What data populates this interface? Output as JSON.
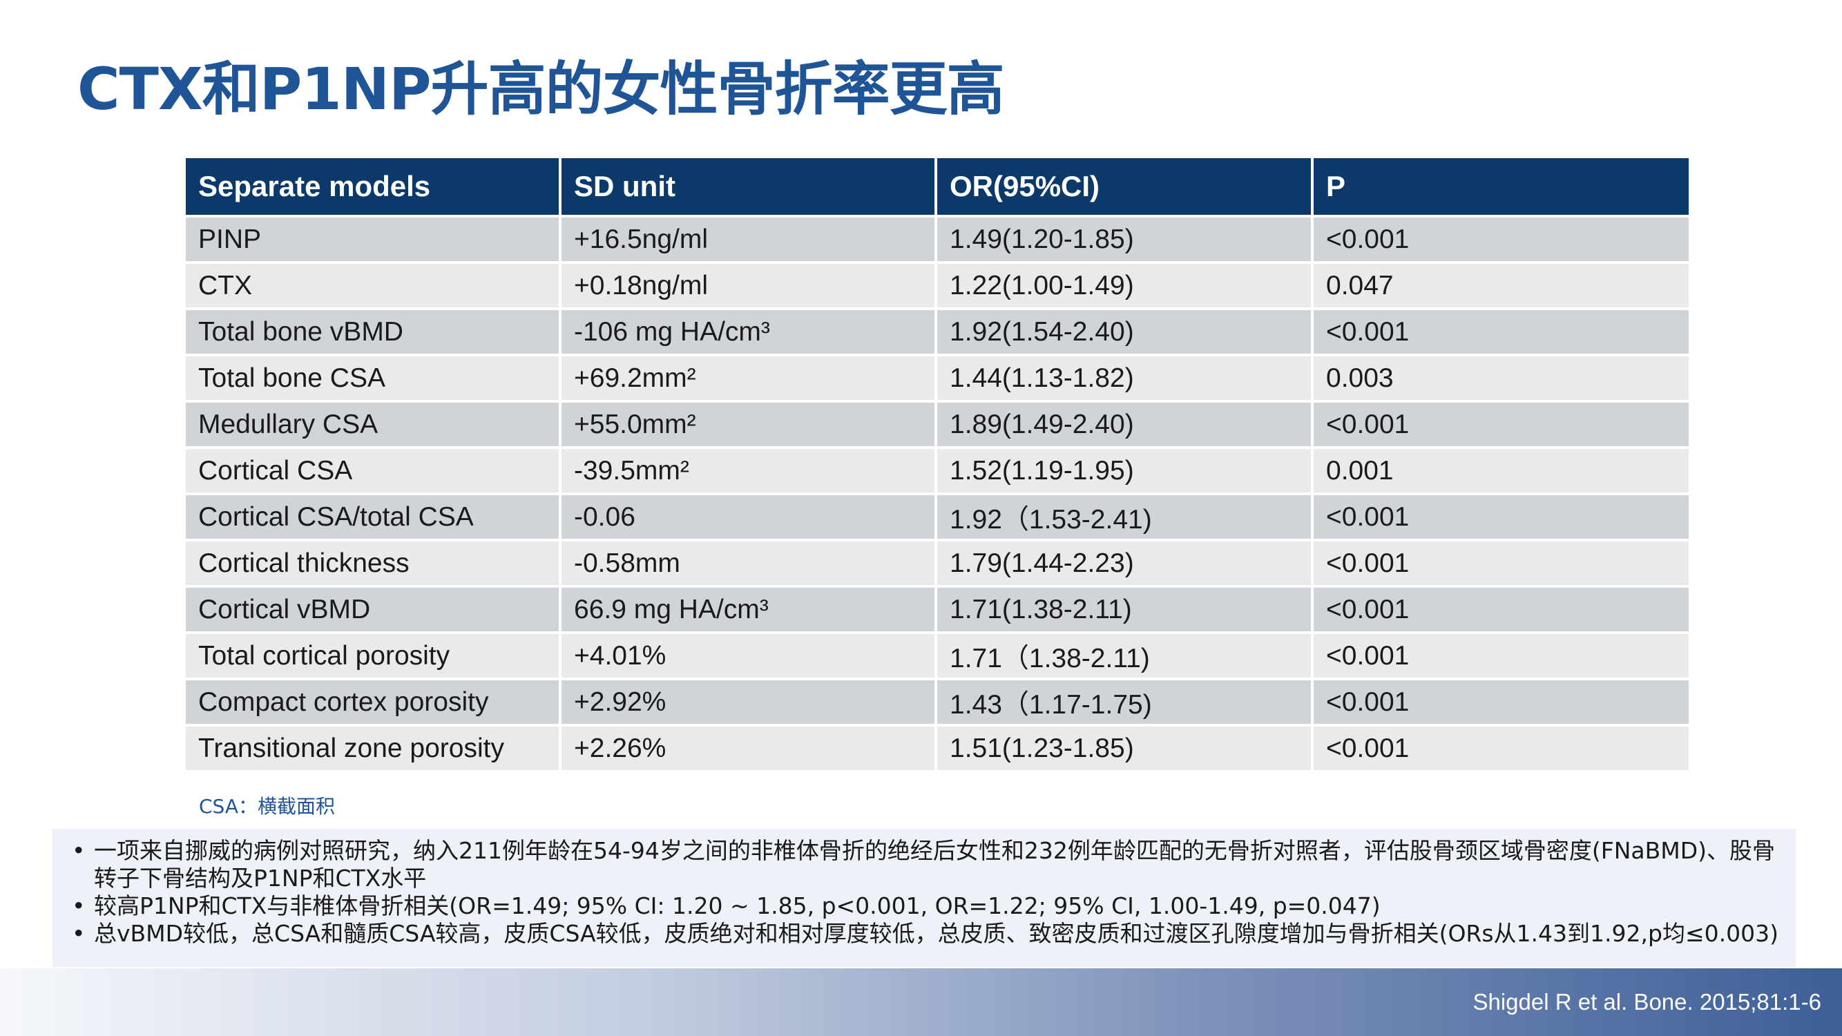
{
  "title": "CTX和P1NP升高的女性骨折率更高",
  "table": {
    "headers": [
      "Separate models",
      "SD unit",
      "OR(95%CI)",
      "P"
    ],
    "rows": [
      [
        "PINP",
        "+16.5ng/ml",
        "1.49(1.20-1.85)",
        "<0.001"
      ],
      [
        "CTX",
        "+0.18ng/ml",
        "1.22(1.00-1.49)",
        "0.047"
      ],
      [
        "Total bone vBMD",
        "-106 mg HA/cm³",
        "1.92(1.54-2.40)",
        "<0.001"
      ],
      [
        "Total bone CSA",
        "+69.2mm²",
        "1.44(1.13-1.82)",
        "0.003"
      ],
      [
        "Medullary CSA",
        "+55.0mm²",
        "1.89(1.49-2.40)",
        "<0.001"
      ],
      [
        "Cortical CSA",
        "-39.5mm²",
        "1.52(1.19-1.95)",
        "0.001"
      ],
      [
        "Cortical CSA/total CSA",
        "-0.06",
        "1.92（1.53-2.41)",
        "<0.001"
      ],
      [
        "Cortical thickness",
        "-0.58mm",
        "1.79(1.44-2.23)",
        "<0.001"
      ],
      [
        "Cortical vBMD",
        "66.9 mg HA/cm³",
        "1.71(1.38-2.11)",
        "<0.001"
      ],
      [
        "Total cortical porosity",
        "+4.01%",
        "1.71（1.38-2.11)",
        "<0.001"
      ],
      [
        "Compact cortex porosity",
        "+2.92%",
        "1.43（1.17-1.75)",
        "<0.001"
      ],
      [
        "Transitional zone porosity",
        "+2.26%",
        "1.51(1.23-1.85)",
        "<0.001"
      ]
    ]
  },
  "footnote": "CSA：横截面积",
  "notes": [
    "一项来自挪威的病例对照研究，纳入211例年龄在54-94岁之间的非椎体骨折的绝经后女性和232例年龄匹配的无骨折对照者，评估股骨颈区域骨密度(FNaBMD)、股骨转子下骨结构及P1NP和CTX水平",
    "较高P1NP和CTX与非椎体骨折相关(OR=1.49; 95% CI: 1.20 ~ 1.85, p<0.001, OR=1.22; 95% CI, 1.00-1.49, p=0.047)",
    "总vBMD较低，总CSA和髓质CSA较高，皮质CSA较低，皮质绝对和相对厚度较低，总皮质、致密皮质和过渡区孔隙度增加与骨折相关(ORs从1.43到1.92,p均≤0.003)"
  ],
  "bullet": "•",
  "citation": "Shigdel R et al. Bone. 2015;81:1-6"
}
